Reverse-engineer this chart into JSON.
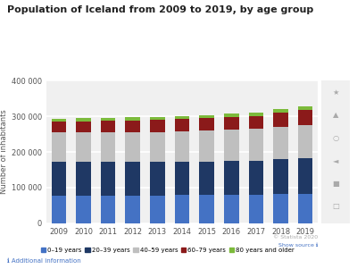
{
  "title": "Population of Iceland from 2009 to 2019, by age group",
  "ylabel": "Number of inhabitants",
  "years": [
    2009,
    2010,
    2011,
    2012,
    2013,
    2014,
    2015,
    2016,
    2017,
    2018,
    2019
  ],
  "age_groups": [
    "0–19 years",
    "20–39 years",
    "40–59 years",
    "60–79 years",
    "80 years and older"
  ],
  "colors": [
    "#4472C4",
    "#1F3864",
    "#BFBFBF",
    "#8B1A1A",
    "#7CBA3B"
  ],
  "data": {
    "0-19": [
      78000,
      78500,
      78500,
      78500,
      78500,
      79000,
      79500,
      80000,
      80500,
      82000,
      83000
    ],
    "20-39": [
      95000,
      94000,
      94000,
      93500,
      93000,
      93000,
      93500,
      94000,
      95000,
      98000,
      100000
    ],
    "40-59": [
      82000,
      83000,
      84000,
      84500,
      85000,
      86000,
      87000,
      88000,
      89000,
      91000,
      93000
    ],
    "60-79": [
      30000,
      31000,
      31500,
      32000,
      33000,
      34000,
      35000,
      36000,
      37000,
      39000,
      42000
    ],
    "80+": [
      8000,
      8000,
      8200,
      8300,
      8500,
      8700,
      9000,
      9200,
      9500,
      9800,
      10000
    ]
  },
  "ylim": [
    0,
    400000
  ],
  "yticks": [
    0,
    100000,
    200000,
    300000,
    400000
  ],
  "ytick_labels": [
    "0",
    "100 000",
    "200 000",
    "300 000",
    "400 000"
  ],
  "bg_color": "#ffffff",
  "plot_bg_color": "#f0f0f0",
  "grid_color": "#ffffff",
  "footer_text": "© Statista 2020",
  "additional_info": "ℹ Additional information",
  "show_source": "Show source ℹ",
  "icon_color": "#cccccc"
}
